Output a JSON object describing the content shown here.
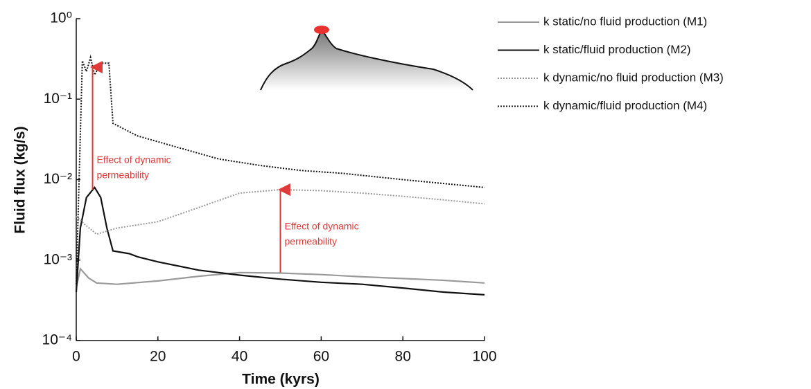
{
  "chart_data": {
    "type": "line",
    "x_label": "Time (kyrs)",
    "y_label": "Fluid flux (kg/s)",
    "xlim": [
      0,
      100
    ],
    "xticks": [
      0,
      20,
      40,
      60,
      80,
      100
    ],
    "ylim": [
      0.0001,
      1
    ],
    "log_y": true,
    "yticks": [
      {
        "value": 1,
        "label": "10⁰"
      },
      {
        "value": 0.1,
        "label": "10⁻¹"
      },
      {
        "value": 0.01,
        "label": "10⁻²"
      },
      {
        "value": 0.001,
        "label": "10⁻³"
      },
      {
        "value": 0.0001,
        "label": "10⁻⁴"
      }
    ],
    "series": [
      {
        "name": "k static/no fluid production (M1)",
        "color": "#9a9a9a",
        "dash": "solid",
        "x": [
          0,
          1,
          3,
          5,
          10,
          20,
          30,
          40,
          50,
          60,
          70,
          80,
          90,
          100
        ],
        "values": [
          0.00045,
          0.00078,
          0.0006,
          0.00052,
          0.0005,
          0.00055,
          0.00063,
          0.0007,
          0.00069,
          0.00066,
          0.00062,
          0.00059,
          0.00056,
          0.00052
        ]
      },
      {
        "name": "k static/fluid production (M2)",
        "color": "#111111",
        "dash": "solid",
        "x": [
          0,
          1,
          2.5,
          4.5,
          6,
          7.5,
          9,
          13,
          15,
          20,
          30,
          40,
          50,
          60,
          70,
          80,
          90,
          100
        ],
        "values": [
          0.0004,
          0.0025,
          0.006,
          0.008,
          0.006,
          0.0025,
          0.0013,
          0.0012,
          0.0011,
          0.00095,
          0.00075,
          0.00065,
          0.00058,
          0.00053,
          0.0005,
          0.00045,
          0.0004,
          0.00037
        ]
      },
      {
        "name": "k dynamic/no fluid production (M3)",
        "color": "#9a9a9a",
        "dash": "dotted",
        "x": [
          0,
          2,
          5,
          10,
          20,
          30,
          40,
          50,
          60,
          70,
          80,
          90,
          100
        ],
        "values": [
          0.0035,
          0.0028,
          0.0021,
          0.0025,
          0.003,
          0.0045,
          0.0068,
          0.0075,
          0.0073,
          0.0068,
          0.0062,
          0.0056,
          0.005
        ]
      },
      {
        "name": "k dynamic/fluid production (M4)",
        "color": "#111111",
        "dash": "dotted",
        "x": [
          0,
          1.5,
          2.5,
          3.5,
          4.5,
          6,
          8,
          9,
          15,
          25,
          35,
          45,
          55,
          65,
          80,
          100
        ],
        "values": [
          0.0005,
          0.3,
          0.22,
          0.33,
          0.2,
          0.28,
          0.28,
          0.05,
          0.035,
          0.025,
          0.018,
          0.015,
          0.013,
          0.012,
          0.01,
          0.008
        ]
      }
    ],
    "annotations": [
      {
        "lines": [
          "Effect of dynamic",
          "permeability"
        ],
        "x": 4,
        "from": 0.0075,
        "to": 0.25
      },
      {
        "lines": [
          "Effect of dynamic",
          "permeability"
        ],
        "x": 50,
        "from": 0.0007,
        "to": 0.0075
      }
    ]
  }
}
